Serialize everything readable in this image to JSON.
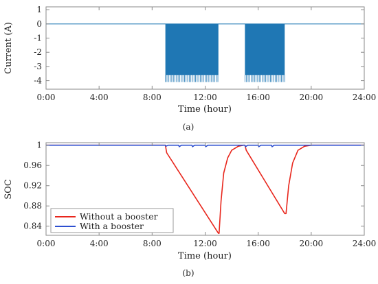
{
  "chart_data": [
    {
      "panel": "(a)",
      "type": "line",
      "xlabel": "Time (hour)",
      "ylabel": "Current (A)",
      "x_tick_labels": [
        "0:00",
        "4:00",
        "8:00",
        "12:00",
        "16:00",
        "20:00",
        "24:00"
      ],
      "y_tick_labels": [
        "1",
        "0",
        "-1",
        "-2",
        "-3",
        "-4"
      ],
      "xlim_hours": [
        0,
        24
      ],
      "ylim": [
        -4.6,
        1.2
      ],
      "grid": false,
      "colors": {
        "series": "#1f77b4",
        "axes": "#888888"
      },
      "series": [
        {
          "pulsed_intervals_hours": [
            [
              9.0,
              13.0
            ],
            [
              15.0,
              18.0
            ]
          ],
          "baseline_A": 0.0,
          "pulse_plateau_A": -3.6,
          "pulse_min_A": -4.1,
          "pulse_period_hours": 0.12
        }
      ]
    },
    {
      "panel": "(b)",
      "type": "line",
      "xlabel": "Time (hour)",
      "ylabel": "SOC",
      "x_tick_labels": [
        "0:00",
        "4:00",
        "8:00",
        "12:00",
        "16:00",
        "20:00",
        "24:00"
      ],
      "y_tick_labels": [
        "1",
        "0.96",
        "0.92",
        "0.88",
        "0.84"
      ],
      "xlim_hours": [
        0,
        24
      ],
      "ylim": [
        0.822,
        1.005
      ],
      "grid": false,
      "legend_position": "bottom-left",
      "colors": {
        "axes": "#888888"
      },
      "series": [
        {
          "name": "Without a booster",
          "color": "#e8261c",
          "points": [
            [
              0,
              1.0
            ],
            [
              9.0,
              1.0
            ],
            [
              9.1,
              0.985
            ],
            [
              13.0,
              0.826
            ],
            [
              13.05,
              0.826
            ],
            [
              13.2,
              0.89
            ],
            [
              13.4,
              0.945
            ],
            [
              13.7,
              0.975
            ],
            [
              14.0,
              0.99
            ],
            [
              14.5,
              0.998
            ],
            [
              14.9,
              1.0
            ],
            [
              15.0,
              1.0
            ],
            [
              15.1,
              0.99
            ],
            [
              18.0,
              0.865
            ],
            [
              18.1,
              0.865
            ],
            [
              18.3,
              0.92
            ],
            [
              18.6,
              0.965
            ],
            [
              19.0,
              0.99
            ],
            [
              19.5,
              0.998
            ],
            [
              20.0,
              1.0
            ],
            [
              24,
              1.0
            ]
          ]
        },
        {
          "name": "With a booster",
          "color": "#2d4fd0",
          "points": [
            [
              0,
              1.0
            ],
            [
              9.0,
              1.0
            ],
            [
              9.05,
              0.998
            ],
            [
              9.2,
              1.0
            ],
            [
              10.0,
              1.0
            ],
            [
              10.05,
              0.997
            ],
            [
              10.2,
              1.0
            ],
            [
              11.0,
              1.0
            ],
            [
              11.05,
              0.997
            ],
            [
              11.2,
              1.0
            ],
            [
              12.0,
              1.0
            ],
            [
              12.05,
              0.997
            ],
            [
              12.2,
              1.0
            ],
            [
              15.0,
              1.0
            ],
            [
              15.05,
              0.997
            ],
            [
              15.2,
              1.0
            ],
            [
              16.0,
              1.0
            ],
            [
              16.05,
              0.997
            ],
            [
              16.2,
              1.0
            ],
            [
              17.0,
              1.0
            ],
            [
              17.05,
              0.997
            ],
            [
              17.2,
              1.0
            ],
            [
              24,
              1.0
            ]
          ]
        }
      ]
    }
  ]
}
